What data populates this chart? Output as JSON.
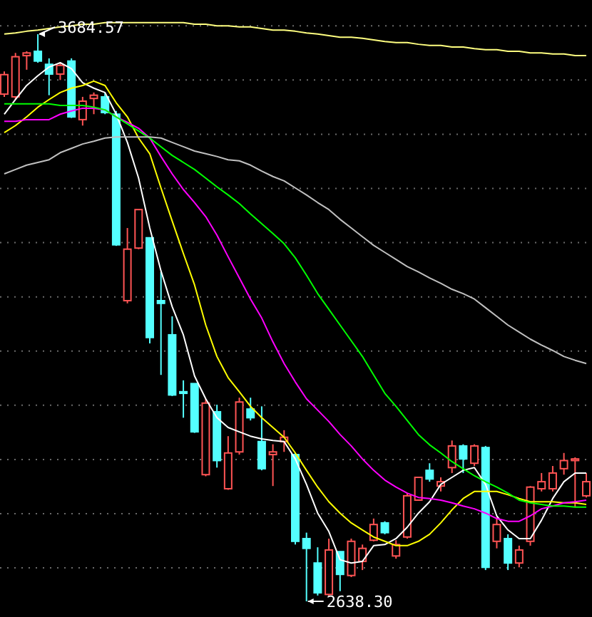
{
  "chart_data": {
    "type": "candlestick",
    "grid": "y",
    "categories": [
      null,
      null,
      null,
      null,
      null,
      null,
      null,
      null,
      null,
      null,
      null,
      null,
      null,
      null,
      null,
      null,
      null,
      null,
      null,
      null,
      null,
      null,
      null,
      null,
      null,
      null,
      null,
      null,
      null,
      null,
      null,
      null,
      null,
      null,
      null,
      null,
      null,
      null,
      null,
      null,
      null,
      null,
      null,
      null,
      null,
      null,
      null,
      null,
      null,
      null,
      null,
      null,
      null
    ],
    "yticks": [
      {
        "value": 3700,
        "label": null
      },
      {
        "value": 3600,
        "label": null
      },
      {
        "value": 3500,
        "label": null
      },
      {
        "value": 3400,
        "label": null
      },
      {
        "value": 3300,
        "label": null
      },
      {
        "value": 3200,
        "label": null
      },
      {
        "value": 3100,
        "label": null
      },
      {
        "value": 3000,
        "label": null
      },
      {
        "value": 2900,
        "label": null
      },
      {
        "value": 2800,
        "label": null
      },
      {
        "value": 2700,
        "label": null
      }
    ],
    "ohlc": [
      [
        3574,
        3616,
        3569,
        3610
      ],
      [
        3569,
        3650,
        3564,
        3643
      ],
      [
        3645,
        3653,
        3619,
        3650
      ],
      [
        3653,
        3684.57,
        3632,
        3635
      ],
      [
        3629,
        3640,
        3572,
        3611
      ],
      [
        3611,
        3632,
        3600,
        3627
      ],
      [
        3635,
        3640,
        3530,
        3532
      ],
      [
        3527,
        3569,
        3516,
        3561
      ],
      [
        3566,
        3577,
        3537,
        3572
      ],
      [
        3569,
        3577,
        3537,
        3540
      ],
      [
        3537,
        3543,
        3294,
        3296
      ],
      [
        3193,
        3327,
        3188,
        3288
      ],
      [
        3290,
        3361,
        3288,
        3361
      ],
      [
        3309,
        3309,
        3114,
        3125
      ],
      [
        3193,
        3246,
        3056,
        3188
      ],
      [
        3130,
        3164,
        3017,
        3019
      ],
      [
        3025,
        3046,
        2977,
        3022
      ],
      [
        3040,
        3040,
        2949,
        2951
      ],
      [
        2872,
        3012,
        2869,
        3004
      ],
      [
        2988,
        3001,
        2885,
        2898
      ],
      [
        2846,
        2943,
        2844,
        2912
      ],
      [
        2914,
        3014,
        2909,
        3006
      ],
      [
        2993,
        3014,
        2972,
        2977
      ],
      [
        2933,
        2998,
        2880,
        2883
      ],
      [
        2909,
        2928,
        2851,
        2914
      ],
      [
        2933,
        2954,
        2914,
        2941
      ],
      [
        2909,
        2912,
        2743,
        2749
      ],
      [
        2754,
        2765,
        2638.3,
        2736
      ],
      [
        2709,
        2738,
        2649,
        2654
      ],
      [
        2651,
        2754,
        2649,
        2733
      ],
      [
        2730,
        2730,
        2657,
        2688
      ],
      [
        2686,
        2754,
        2683,
        2749
      ],
      [
        2712,
        2743,
        2696,
        2736
      ],
      [
        2751,
        2791,
        2749,
        2780
      ],
      [
        2783,
        2786,
        2762,
        2765
      ],
      [
        2722,
        2751,
        2717,
        2743
      ],
      [
        2757,
        2838,
        2754,
        2833
      ],
      [
        2825,
        2867,
        2825,
        2867
      ],
      [
        2880,
        2893,
        2859,
        2864
      ],
      [
        2851,
        2867,
        2841,
        2859
      ],
      [
        2885,
        2935,
        2875,
        2925
      ],
      [
        2925,
        2928,
        2875,
        2901
      ],
      [
        2893,
        2928,
        2888,
        2925
      ],
      [
        2922,
        2925,
        2696,
        2701
      ],
      [
        2749,
        2793,
        2736,
        2780
      ],
      [
        2754,
        2762,
        2696,
        2709
      ],
      [
        2709,
        2741,
        2701,
        2733
      ],
      [
        2749,
        2851,
        2741,
        2849
      ],
      [
        2846,
        2875,
        2841,
        2859
      ],
      [
        2846,
        2888,
        2841,
        2875
      ],
      [
        2883,
        2912,
        2872,
        2898
      ],
      [
        2898,
        2904,
        2812,
        2901
      ],
      [
        2833,
        2875,
        2830,
        2859
      ]
    ],
    "colors": [
      "#ff5454",
      "#ff5454",
      "#ff5454",
      "#54ffff",
      "#54ffff",
      "#ff5454",
      "#54ffff",
      "#ff5454",
      "#ff5454",
      "#54ffff",
      "#54ffff",
      "#ff5454",
      "#ff5454",
      "#54ffff",
      "#54ffff",
      "#54ffff",
      "#54ffff",
      "#54ffff",
      "#ff5454",
      "#54ffff",
      "#ff5454",
      "#ff5454",
      "#54ffff",
      "#54ffff",
      "#ff5454",
      "#ff5454",
      "#54ffff",
      "#54ffff",
      "#54ffff",
      "#ff5454",
      "#54ffff",
      "#ff5454",
      "#ff5454",
      "#ff5454",
      "#54ffff",
      "#ff5454",
      "#ff5454",
      "#ff5454",
      "#54ffff",
      "#ff5454",
      "#ff5454",
      "#54ffff",
      "#ff5454",
      "#54ffff",
      "#ff5454",
      "#54ffff",
      "#ff5454",
      "#ff5454",
      "#ff5454",
      "#ff5454",
      "#ff5454",
      "#ff5454",
      "#ff5454"
    ],
    "series": [
      {
        "type": "line",
        "color": "#ffffff",
        "values": [
          3537,
          3564,
          3590,
          3608,
          3624,
          3632,
          3621,
          3595,
          3585,
          3577,
          3537,
          3485,
          3419,
          3327,
          3248,
          3182,
          3130,
          3054,
          3012,
          2977,
          2959,
          2951,
          2943,
          2938,
          2935,
          2933,
          2901,
          2854,
          2801,
          2767,
          2715,
          2709,
          2712,
          2741,
          2743,
          2754,
          2775,
          2801,
          2822,
          2854,
          2867,
          2880,
          2885,
          2854,
          2796,
          2770,
          2754,
          2754,
          2788,
          2828,
          2859,
          2875,
          2875
        ]
      },
      {
        "type": "line",
        "color": "#ffff00",
        "values": [
          3503,
          3516,
          3532,
          3550,
          3564,
          3577,
          3585,
          3590,
          3598,
          3590,
          3558,
          3532,
          3493,
          3464,
          3401,
          3340,
          3280,
          3222,
          3148,
          3090,
          3051,
          3025,
          2998,
          2977,
          2959,
          2941,
          2912,
          2880,
          2849,
          2822,
          2801,
          2783,
          2770,
          2757,
          2749,
          2741,
          2741,
          2749,
          2762,
          2783,
          2807,
          2828,
          2841,
          2841,
          2841,
          2835,
          2828,
          2822,
          2822,
          2822,
          2820,
          2820,
          2817
        ]
      },
      {
        "type": "line",
        "color": "#ff00ff",
        "values": [
          3524,
          3524,
          3527,
          3527,
          3527,
          3537,
          3543,
          3548,
          3548,
          3545,
          3532,
          3522,
          3511,
          3493,
          3459,
          3427,
          3398,
          3374,
          3348,
          3314,
          3274,
          3235,
          3196,
          3161,
          3117,
          3077,
          3043,
          3012,
          2991,
          2970,
          2946,
          2925,
          2901,
          2880,
          2862,
          2849,
          2838,
          2830,
          2828,
          2825,
          2820,
          2814,
          2809,
          2801,
          2791,
          2786,
          2786,
          2796,
          2809,
          2814,
          2820,
          2822,
          2825
        ]
      },
      {
        "type": "line",
        "color": "#00ff00",
        "values": [
          3556,
          3556,
          3556,
          3556,
          3556,
          3553,
          3553,
          3553,
          3550,
          3545,
          3532,
          3519,
          3506,
          3493,
          3477,
          3461,
          3448,
          3435,
          3419,
          3403,
          3388,
          3372,
          3353,
          3335,
          3317,
          3298,
          3272,
          3240,
          3206,
          3177,
          3148,
          3119,
          3090,
          3056,
          3022,
          2998,
          2972,
          2946,
          2927,
          2912,
          2896,
          2883,
          2870,
          2859,
          2849,
          2838,
          2825,
          2820,
          2817,
          2814,
          2814,
          2812,
          2812
        ]
      },
      {
        "type": "line",
        "color": "#c0c0c0",
        "values": [
          3427,
          3435,
          3443,
          3448,
          3453,
          3466,
          3474,
          3482,
          3487,
          3493,
          3495,
          3495,
          3495,
          3495,
          3493,
          3485,
          3477,
          3469,
          3464,
          3459,
          3453,
          3451,
          3443,
          3432,
          3422,
          3414,
          3401,
          3388,
          3374,
          3361,
          3343,
          3327,
          3311,
          3295,
          3282,
          3269,
          3256,
          3246,
          3235,
          3225,
          3214,
          3206,
          3196,
          3180,
          3164,
          3148,
          3135,
          3122,
          3111,
          3101,
          3090,
          3083,
          3077
        ]
      },
      {
        "type": "line",
        "color": "#ffff80",
        "values": [
          3685,
          3687,
          3690,
          3692,
          3695,
          3698,
          3700,
          3703,
          3703,
          3706,
          3706,
          3706,
          3706,
          3706,
          3706,
          3706,
          3706,
          3703,
          3703,
          3700,
          3700,
          3698,
          3698,
          3695,
          3692,
          3692,
          3690,
          3687,
          3685,
          3682,
          3679,
          3679,
          3677,
          3674,
          3671,
          3669,
          3669,
          3666,
          3664,
          3664,
          3661,
          3661,
          3658,
          3656,
          3656,
          3653,
          3653,
          3650,
          3650,
          3648,
          3648,
          3645,
          3645
        ]
      }
    ],
    "annotations": [
      "3684.57",
      "2638.30"
    ]
  }
}
